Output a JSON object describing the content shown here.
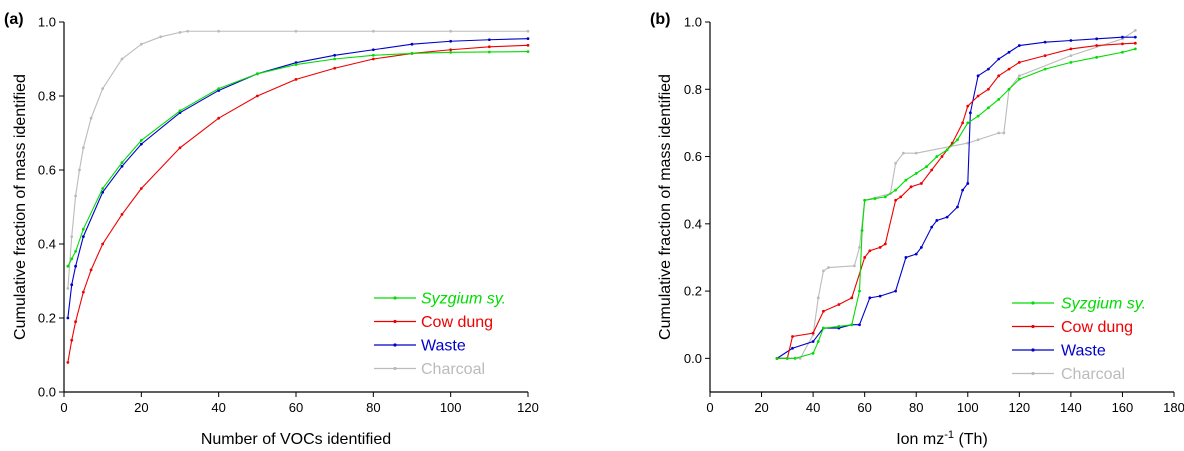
{
  "chart_data": [
    {
      "type": "line",
      "panel_label": "(a)",
      "xlabel": "Number of VOCs identified",
      "ylabel": "Cumulative fraction of mass identified",
      "xlim": [
        0,
        120
      ],
      "ylim": [
        0.0,
        1.0
      ],
      "xticks": [
        0,
        20,
        40,
        60,
        80,
        100,
        120
      ],
      "yticks": [
        0.0,
        0.2,
        0.4,
        0.6,
        0.8,
        1.0
      ],
      "grid": false,
      "legend_position": "bottom-right",
      "series": [
        {
          "name": "Syzgium sy.",
          "color": "#00dd00",
          "italic": true,
          "x": [
            1,
            2,
            3,
            5,
            10,
            15,
            20,
            30,
            40,
            50,
            60,
            70,
            80,
            90,
            100,
            110,
            120
          ],
          "y": [
            0.34,
            0.36,
            0.38,
            0.44,
            0.55,
            0.62,
            0.68,
            0.76,
            0.82,
            0.86,
            0.885,
            0.9,
            0.91,
            0.915,
            0.918,
            0.919,
            0.92
          ]
        },
        {
          "name": "Cow dung",
          "color": "#ee0000",
          "italic": false,
          "x": [
            1,
            2,
            3,
            5,
            7,
            10,
            15,
            20,
            30,
            40,
            50,
            60,
            70,
            80,
            90,
            100,
            110,
            120
          ],
          "y": [
            0.08,
            0.14,
            0.19,
            0.27,
            0.33,
            0.4,
            0.48,
            0.55,
            0.66,
            0.74,
            0.8,
            0.845,
            0.875,
            0.9,
            0.915,
            0.925,
            0.933,
            0.937
          ]
        },
        {
          "name": "Waste",
          "color": "#0000cc",
          "italic": false,
          "x": [
            1,
            2,
            3,
            5,
            10,
            15,
            20,
            30,
            40,
            50,
            60,
            70,
            80,
            90,
            100,
            110,
            120
          ],
          "y": [
            0.2,
            0.29,
            0.34,
            0.42,
            0.54,
            0.61,
            0.67,
            0.755,
            0.815,
            0.86,
            0.89,
            0.91,
            0.925,
            0.94,
            0.948,
            0.952,
            0.955
          ]
        },
        {
          "name": "Charcoal",
          "color": "#bbbbbb",
          "italic": false,
          "x": [
            1,
            2,
            3,
            4,
            5,
            7,
            10,
            15,
            20,
            25,
            30,
            32,
            40,
            60,
            80,
            100,
            120
          ],
          "y": [
            0.28,
            0.42,
            0.53,
            0.6,
            0.66,
            0.74,
            0.82,
            0.9,
            0.94,
            0.96,
            0.972,
            0.975,
            0.975,
            0.975,
            0.975,
            0.975,
            0.975
          ]
        }
      ]
    },
    {
      "type": "line",
      "panel_label": "(b)",
      "xlabel": "Ion mz",
      "xlabel_sup": "-1",
      "xlabel_suffix": " (Th)",
      "ylabel": "Cumulative fraction of mass identified",
      "xlim": [
        0,
        180
      ],
      "ylim": [
        -0.1,
        1.0
      ],
      "xticks": [
        0,
        20,
        40,
        60,
        80,
        100,
        120,
        140,
        160,
        180
      ],
      "yticks": [
        0.0,
        0.2,
        0.4,
        0.6,
        0.8,
        1.0
      ],
      "grid": false,
      "legend_position": "bottom-right",
      "series": [
        {
          "name": "Syzgium sy.",
          "color": "#00dd00",
          "italic": true,
          "x": [
            26,
            30,
            33,
            40,
            42,
            44,
            50,
            55,
            58,
            59,
            60,
            64,
            68,
            72,
            76,
            80,
            84,
            88,
            92,
            96,
            100,
            104,
            108,
            112,
            116,
            120,
            130,
            140,
            150,
            160,
            165
          ],
          "y": [
            0.0,
            0.0,
            0.0,
            0.015,
            0.05,
            0.09,
            0.095,
            0.1,
            0.2,
            0.38,
            0.47,
            0.475,
            0.48,
            0.5,
            0.53,
            0.55,
            0.57,
            0.6,
            0.62,
            0.65,
            0.7,
            0.72,
            0.745,
            0.77,
            0.8,
            0.83,
            0.86,
            0.88,
            0.895,
            0.91,
            0.92
          ]
        },
        {
          "name": "Cow dung",
          "color": "#ee0000",
          "italic": false,
          "x": [
            26,
            30,
            32,
            40,
            44,
            50,
            55,
            60,
            62,
            66,
            68,
            72,
            74,
            78,
            82,
            86,
            90,
            94,
            98,
            100,
            104,
            108,
            112,
            116,
            120,
            130,
            140,
            150,
            160,
            165
          ],
          "y": [
            0.0,
            0.0,
            0.065,
            0.075,
            0.14,
            0.16,
            0.18,
            0.3,
            0.32,
            0.33,
            0.34,
            0.47,
            0.48,
            0.51,
            0.52,
            0.56,
            0.6,
            0.64,
            0.7,
            0.75,
            0.78,
            0.8,
            0.84,
            0.86,
            0.88,
            0.9,
            0.92,
            0.93,
            0.935,
            0.937
          ]
        },
        {
          "name": "Waste",
          "color": "#0000cc",
          "italic": false,
          "x": [
            26,
            32,
            40,
            44,
            50,
            55,
            58,
            62,
            66,
            72,
            76,
            80,
            82,
            86,
            88,
            92,
            96,
            98,
            100,
            101,
            104,
            108,
            112,
            116,
            120,
            130,
            140,
            150,
            160,
            165
          ],
          "y": [
            0.0,
            0.03,
            0.05,
            0.09,
            0.09,
            0.1,
            0.1,
            0.18,
            0.185,
            0.2,
            0.3,
            0.31,
            0.33,
            0.39,
            0.41,
            0.42,
            0.45,
            0.5,
            0.52,
            0.73,
            0.84,
            0.86,
            0.89,
            0.91,
            0.93,
            0.94,
            0.945,
            0.95,
            0.955,
            0.955
          ]
        },
        {
          "name": "Charcoal",
          "color": "#bbbbbb",
          "italic": false,
          "x": [
            26,
            35,
            40,
            42,
            44,
            46,
            56,
            58,
            60,
            70,
            72,
            75,
            80,
            100,
            104,
            112,
            114,
            116,
            120,
            140,
            160,
            165
          ],
          "y": [
            0.0,
            0.0,
            0.07,
            0.18,
            0.26,
            0.27,
            0.275,
            0.33,
            0.47,
            0.49,
            0.58,
            0.61,
            0.61,
            0.64,
            0.65,
            0.67,
            0.67,
            0.8,
            0.84,
            0.9,
            0.95,
            0.975
          ]
        }
      ]
    }
  ]
}
